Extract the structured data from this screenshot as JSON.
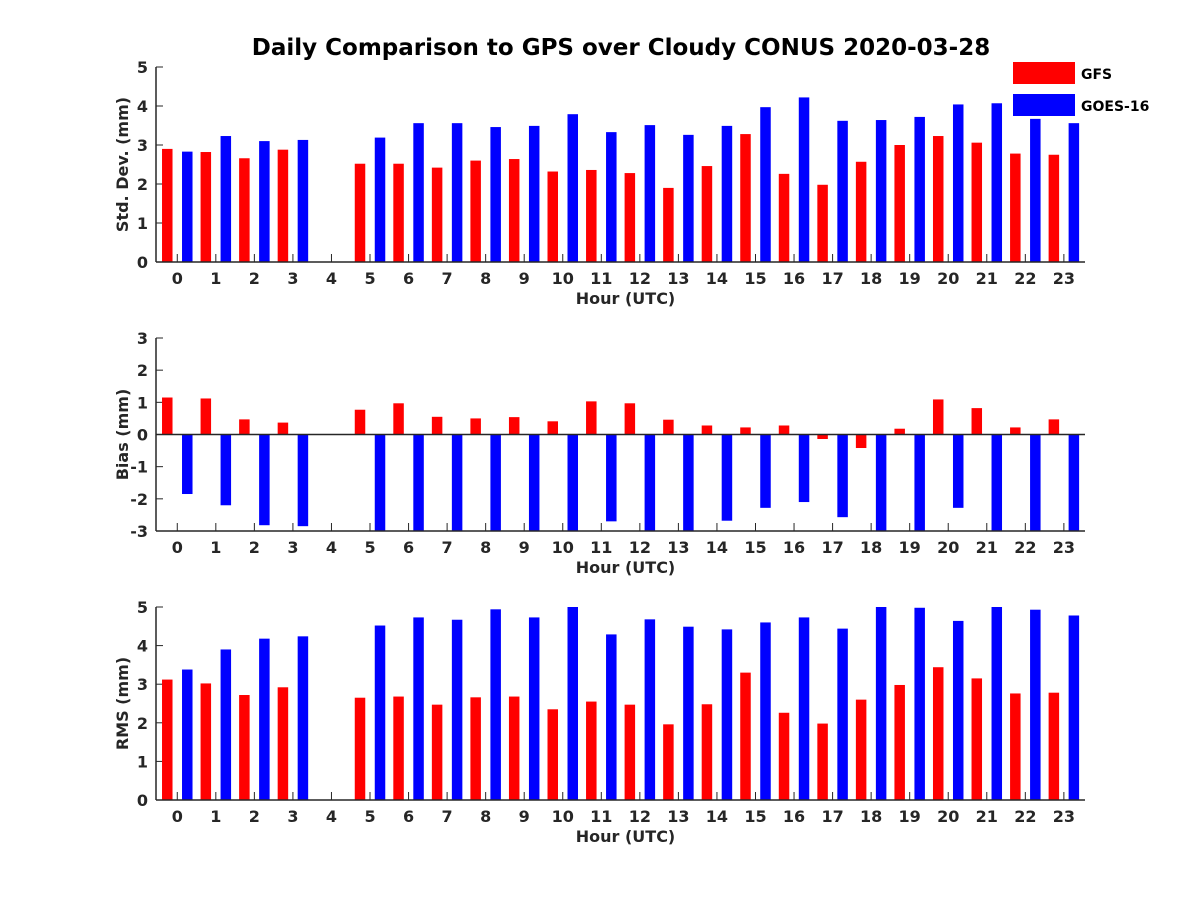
{
  "chart_data": {
    "title": "Daily Comparison to GPS over Cloudy CONUS 2020-03-28",
    "type": "bar",
    "legend": {
      "placement": "top-right",
      "entries": [
        {
          "name": "GFS",
          "color": "#ff0000"
        },
        {
          "name": "GOES-16",
          "color": "#0000ff"
        }
      ]
    },
    "categories": [
      "0",
      "1",
      "2",
      "3",
      "4",
      "5",
      "6",
      "7",
      "8",
      "9",
      "10",
      "11",
      "12",
      "13",
      "14",
      "15",
      "16",
      "17",
      "18",
      "19",
      "20",
      "21",
      "22",
      "23"
    ],
    "panels": [
      {
        "ylabel": "Std. Dev. (mm)",
        "xlabel": "Hour (UTC)",
        "ylim": [
          0,
          5
        ],
        "yticks": [
          0,
          1,
          2,
          3,
          4,
          5
        ],
        "series": [
          {
            "name": "GFS",
            "color": "#ff0000",
            "values": [
              2.9,
              2.82,
              2.66,
              2.88,
              null,
              2.52,
              2.52,
              2.42,
              2.6,
              2.64,
              2.32,
              2.36,
              2.28,
              1.9,
              2.46,
              3.28,
              2.26,
              1.98,
              2.57,
              3.0,
              3.23,
              3.06,
              2.78,
              2.75
            ]
          },
          {
            "name": "GOES-16",
            "color": "#0000ff",
            "values": [
              2.83,
              3.23,
              3.1,
              3.13,
              null,
              3.19,
              3.56,
              3.56,
              3.46,
              3.49,
              3.79,
              3.33,
              3.51,
              3.26,
              3.49,
              3.97,
              4.22,
              3.62,
              3.64,
              3.72,
              4.04,
              4.07,
              3.67,
              3.56
            ]
          }
        ]
      },
      {
        "ylabel": "Bias (mm)",
        "xlabel": "Hour (UTC)",
        "ylim": [
          -3,
          3
        ],
        "yticks": [
          -3,
          -2,
          -1,
          0,
          1,
          2,
          3
        ],
        "series": [
          {
            "name": "GFS",
            "color": "#ff0000",
            "values": [
              1.15,
              1.12,
              0.47,
              0.37,
              null,
              0.77,
              0.97,
              0.55,
              0.5,
              0.54,
              0.41,
              1.03,
              0.97,
              0.46,
              0.28,
              0.22,
              0.28,
              -0.14,
              -0.42,
              0.18,
              1.09,
              0.82,
              0.22,
              0.47
            ]
          },
          {
            "name": "GOES-16",
            "color": "#0000ff",
            "values": [
              -1.85,
              -2.2,
              -2.82,
              -2.85,
              null,
              -3.0,
              -3.0,
              -3.0,
              -3.0,
              -3.0,
              -3.0,
              -2.7,
              -3.0,
              -3.0,
              -2.68,
              -2.28,
              -2.1,
              -2.57,
              -3.0,
              -3.0,
              -2.28,
              -3.0,
              -3.0,
              -3.0
            ]
          }
        ]
      },
      {
        "ylabel": "RMS (mm)",
        "xlabel": "Hour (UTC)",
        "ylim": [
          0,
          5
        ],
        "yticks": [
          0,
          1,
          2,
          3,
          4,
          5
        ],
        "series": [
          {
            "name": "GFS",
            "color": "#ff0000",
            "values": [
              3.12,
              3.02,
              2.72,
              2.92,
              null,
              2.65,
              2.68,
              2.47,
              2.66,
              2.68,
              2.35,
              2.55,
              2.47,
              1.96,
              2.48,
              3.3,
              2.26,
              1.98,
              2.6,
              2.98,
              3.44,
              3.15,
              2.76,
              2.78
            ]
          },
          {
            "name": "GOES-16",
            "color": "#0000ff",
            "values": [
              3.38,
              3.9,
              4.18,
              4.24,
              null,
              4.52,
              4.73,
              4.67,
              4.94,
              4.73,
              5.0,
              4.29,
              4.68,
              4.49,
              4.42,
              4.6,
              4.73,
              4.44,
              5.0,
              4.98,
              4.64,
              5.0,
              4.93,
              4.78
            ]
          }
        ]
      }
    ]
  }
}
